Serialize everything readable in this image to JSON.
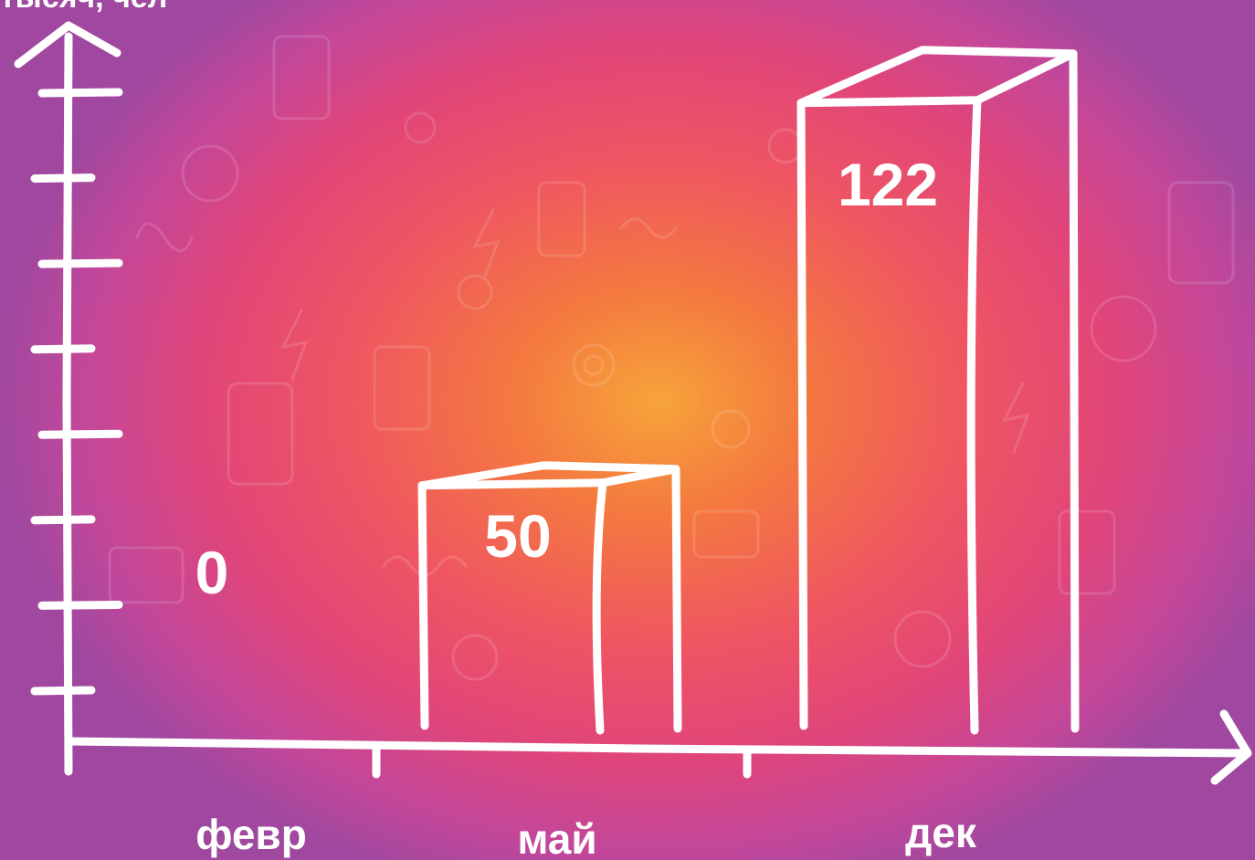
{
  "chart_data": {
    "type": "bar",
    "title": "",
    "ylabel": "тысяч, чел",
    "xlabel": "",
    "categories": [
      "февр",
      "май",
      "дек"
    ],
    "values": [
      0,
      50,
      122
    ],
    "value_labels": [
      "0",
      "50",
      "122"
    ],
    "ylim": [
      0,
      140
    ],
    "y_ticks": 8,
    "grid": false,
    "legend": "none",
    "style": "hand-drawn 3D bars",
    "colors": {
      "stroke": "#ffffff",
      "text": "#ffffff",
      "bg_center": "#f7a43a",
      "bg_edge": "#a0489f"
    }
  }
}
